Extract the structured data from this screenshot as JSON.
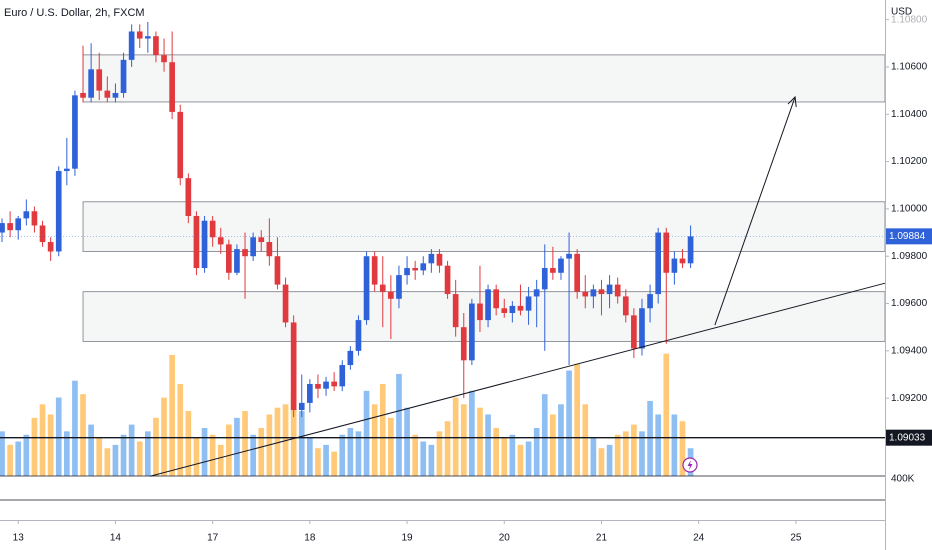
{
  "chart_data": {
    "type": "candlestick",
    "title": "Euro / U.S. Dollar, 2h, FXCM",
    "currency": "USD",
    "up_color": "#2f62d9",
    "down_color": "#e0393e",
    "volume_up_color": "#8fbef2",
    "volume_down_color": "#ffc978",
    "open": [
      1.099,
      1.0994,
      1.0991,
      1.0996,
      1.0999,
      1.0993,
      1.0986,
      1.0982,
      1.1016,
      1.1017,
      1.1049,
      1.1047,
      1.1059,
      1.105,
      1.1047,
      1.1049,
      1.1063,
      1.1075,
      1.1072,
      1.1073,
      1.1065,
      1.1062,
      1.1041,
      1.1013,
      1.0997,
      1.0975,
      1.0995,
      1.0988,
      1.0985,
      1.0973,
      1.0983,
      1.098,
      1.0988,
      1.0986,
      1.098,
      1.0968,
      1.0952,
      1.0915,
      1.0918,
      1.0926,
      1.0924,
      1.0927,
      1.0925,
      1.0934,
      1.094,
      1.0953,
      1.098,
      1.0968,
      1.0965,
      1.0962,
      1.0972,
      1.0975,
      1.0974,
      1.0977,
      1.0981,
      1.0976,
      1.0964,
      1.095,
      1.0936,
      1.096,
      1.0953,
      1.0966,
      1.0958,
      1.0956,
      1.0959,
      1.0957,
      1.0963,
      1.0966,
      1.0975,
      1.0973,
      1.0979,
      1.0981,
      1.0965,
      1.0963,
      1.0966,
      1.0964,
      1.0968,
      1.0963,
      1.0955,
      1.0941,
      1.0958,
      1.0964,
      1.099,
      1.0973,
      1.0979,
      1.0977
    ],
    "high": [
      1.0996,
      1.0999,
      1.0997,
      1.1004,
      1.1001,
      1.0995,
      1.0988,
      1.1018,
      1.103,
      1.105,
      1.1069,
      1.107,
      1.1066,
      1.1056,
      1.1053,
      1.1066,
      1.1078,
      1.1078,
      1.1079,
      1.1075,
      1.1072,
      1.1075,
      1.1044,
      1.1015,
      1.0999,
      1.0997,
      1.0997,
      1.0992,
      1.0987,
      1.0985,
      1.099,
      1.099,
      1.0991,
      1.0996,
      1.0988,
      1.0971,
      1.0955,
      1.093,
      1.0928,
      1.093,
      1.0929,
      1.0931,
      1.0936,
      1.0942,
      1.0955,
      1.0982,
      1.0982,
      1.098,
      1.0972,
      1.0976,
      1.098,
      1.0978,
      1.098,
      1.0983,
      1.0983,
      1.0978,
      1.097,
      1.0956,
      1.0962,
      1.0976,
      1.0968,
      1.0968,
      1.0962,
      1.0961,
      1.0968,
      1.0967,
      1.097,
      1.0985,
      1.0984,
      1.098,
      1.099,
      1.0983,
      1.0972,
      1.0968,
      1.097,
      1.0972,
      1.0971,
      1.0966,
      1.0958,
      1.0962,
      1.0968,
      1.0992,
      1.0992,
      1.0982,
      1.0983,
      1.0993
    ],
    "low": [
      1.0986,
      1.0988,
      1.0987,
      1.0993,
      1.099,
      1.0984,
      1.0978,
      1.098,
      1.101,
      1.1014,
      1.1045,
      1.1045,
      1.1046,
      1.1045,
      1.1045,
      1.1047,
      1.106,
      1.1068,
      1.1066,
      1.1062,
      1.1058,
      1.1038,
      1.101,
      1.0994,
      1.0972,
      1.0973,
      1.0984,
      1.0981,
      1.097,
      1.0972,
      1.0962,
      1.0978,
      1.0982,
      1.0976,
      1.0966,
      1.095,
      1.0912,
      1.0912,
      1.0914,
      1.092,
      1.0921,
      1.0923,
      1.0923,
      1.0932,
      1.0938,
      1.0951,
      1.0965,
      1.095,
      1.0945,
      1.0958,
      1.0968,
      1.097,
      1.0972,
      1.0973,
      1.0973,
      1.0962,
      1.0946,
      1.092,
      1.0934,
      1.0948,
      1.095,
      1.0955,
      1.0954,
      1.0952,
      1.0955,
      1.0951,
      1.095,
      1.094,
      1.097,
      1.097,
      1.0934,
      1.0962,
      1.0958,
      1.0958,
      1.0955,
      1.0958,
      1.096,
      1.0952,
      1.0937,
      1.0938,
      1.0952,
      1.096,
      1.0943,
      1.0968,
      1.0975,
      1.0975
    ],
    "close": [
      1.0994,
      1.0991,
      1.0996,
      1.0999,
      1.0993,
      1.0986,
      1.0982,
      1.1016,
      1.1017,
      1.1048,
      1.1047,
      1.1059,
      1.105,
      1.1047,
      1.1049,
      1.1063,
      1.1075,
      1.1072,
      1.1073,
      1.1065,
      1.1062,
      1.1041,
      1.1013,
      1.0997,
      1.0975,
      1.0995,
      1.0988,
      1.0985,
      1.0973,
      1.0983,
      1.098,
      1.0988,
      1.0986,
      1.098,
      1.0968,
      1.0952,
      1.0915,
      1.0918,
      1.0926,
      1.0924,
      1.0927,
      1.0925,
      1.0934,
      1.094,
      1.0953,
      1.098,
      1.0968,
      1.0965,
      1.0962,
      1.0972,
      1.0975,
      1.0974,
      1.0977,
      1.0981,
      1.0976,
      1.0964,
      1.095,
      1.0936,
      1.096,
      1.0953,
      1.0966,
      1.0958,
      1.0956,
      1.0959,
      1.0957,
      1.0963,
      1.0966,
      1.0975,
      1.0973,
      1.0979,
      1.0981,
      1.0965,
      1.0963,
      1.0966,
      1.0964,
      1.0968,
      1.0963,
      1.0955,
      1.0941,
      1.0958,
      1.0964,
      1.099,
      1.0973,
      1.0979,
      1.0977,
      1.09884
    ],
    "volume": [
      1100000,
      900000,
      950000,
      1050000,
      1300000,
      1500000,
      1350000,
      1600000,
      1100000,
      1850000,
      1650000,
      1200000,
      1000000,
      850000,
      900000,
      1050000,
      1200000,
      950000,
      1100000,
      1300000,
      1600000,
      2230000,
      1800000,
      1400000,
      1000000,
      1150000,
      1050000,
      900000,
      1200000,
      1300000,
      1400000,
      1050000,
      1150000,
      1350000,
      1450000,
      1500000,
      1700000,
      1400000,
      1000000,
      850000,
      900000,
      800000,
      1050000,
      1150000,
      1100000,
      1700000,
      1500000,
      1800000,
      1300000,
      1950000,
      1450000,
      1050000,
      950000,
      900000,
      1100000,
      1250000,
      1600000,
      1500000,
      1700000,
      1450000,
      1350000,
      1150000,
      1000000,
      1050000,
      900000,
      950000,
      1150000,
      1650000,
      1350000,
      1500000,
      2000000,
      2100000,
      1500000,
      1000000,
      850000,
      900000,
      1050000,
      1100000,
      1200000,
      1100000,
      1550000,
      1350000,
      2250000,
      1350000,
      1250000,
      850000
    ],
    "xlim": [
      -0.25,
      109
    ],
    "xticks": [
      {
        "value": 2,
        "label": "13"
      },
      {
        "value": 14,
        "label": "14"
      },
      {
        "value": 26,
        "label": "17"
      },
      {
        "value": 38,
        "label": "18"
      },
      {
        "value": 50,
        "label": "19"
      },
      {
        "value": 62,
        "label": "20"
      },
      {
        "value": 74,
        "label": "21"
      },
      {
        "value": 86,
        "label": "24"
      },
      {
        "value": 98,
        "label": "25"
      }
    ],
    "ylim": [
      1.08685,
      1.10883
    ],
    "yticks": [
      {
        "value": 1.108,
        "label": "1.10800"
      },
      {
        "value": 1.106,
        "label": "1.10600"
      },
      {
        "value": 1.104,
        "label": "1.10400"
      },
      {
        "value": 1.102,
        "label": "1.10200"
      },
      {
        "value": 1.1,
        "label": "1.10000"
      },
      {
        "value": 1.098,
        "label": "1.09800"
      },
      {
        "value": 1.096,
        "label": "1.09600"
      },
      {
        "value": 1.094,
        "label": "1.09400"
      },
      {
        "value": 1.092,
        "label": "1.09200"
      }
    ],
    "vlim": [
      380000,
      2600000
    ],
    "vticks": [
      {
        "value": 400000,
        "label": "400K"
      }
    ],
    "last_price": 1.09884,
    "hline": 1.09033,
    "zones": [
      [
        1.10452,
        1.10651
      ],
      [
        1.0982,
        1.1003
      ],
      [
        1.0944,
        1.0965
      ]
    ],
    "trendline": {
      "x": [
        18.27,
        109
      ],
      "y": [
        1.0887,
        1.09686
      ]
    },
    "arrow": {
      "x": [
        88,
        97.9
      ],
      "y": [
        1.09509,
        1.10473
      ]
    }
  }
}
